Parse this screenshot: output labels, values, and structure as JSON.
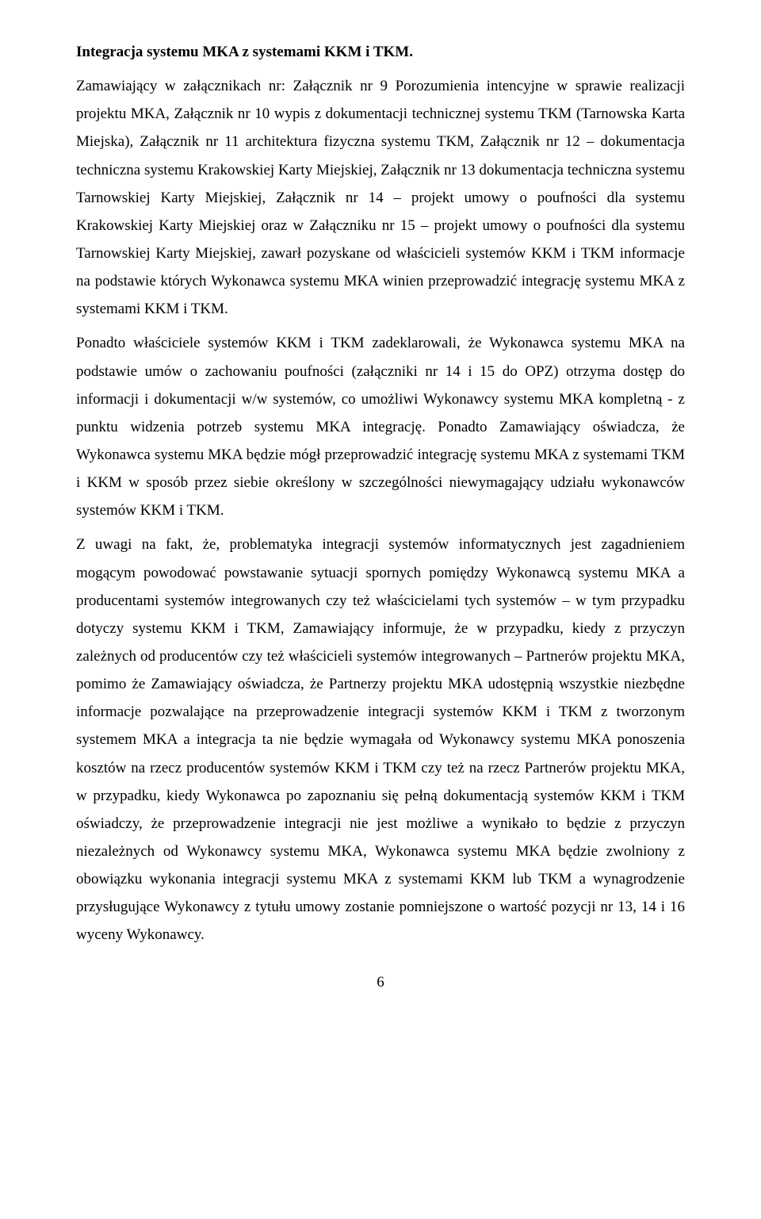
{
  "doc": {
    "heading": "Integracja systemu MKA z systemami KKM i TKM.",
    "p1": "Zamawiający w załącznikach nr: Załącznik nr 9 Porozumienia intencyjne w sprawie realizacji projektu MKA, Załącznik nr 10 wypis z dokumentacji technicznej systemu TKM (Tarnowska Karta Miejska), Załącznik nr 11 architektura fizyczna systemu TKM, Załącznik nr 12 – dokumentacja techniczna systemu Krakowskiej Karty Miejskiej, Załącznik nr 13 dokumentacja techniczna systemu Tarnowskiej Karty Miejskiej, Załącznik nr 14 – projekt umowy o poufności dla systemu Krakowskiej Karty Miejskiej oraz w  Załączniku nr 15 – projekt umowy o poufności dla systemu Tarnowskiej Karty Miejskiej, zawarł pozyskane od właścicieli systemów KKM i TKM informacje na podstawie których Wykonawca systemu MKA winien przeprowadzić integrację systemu MKA z systemami KKM i TKM.",
    "p2": "Ponadto właściciele systemów KKM i TKM zadeklarowali, że Wykonawca systemu MKA na podstawie umów o zachowaniu poufności (załączniki nr 14 i 15 do OPZ) otrzyma dostęp do informacji i dokumentacji w/w systemów, co umożliwi Wykonawcy systemu MKA kompletną - z punktu widzenia potrzeb systemu MKA integrację. Ponadto Zamawiający oświadcza, że Wykonawca systemu MKA będzie mógł przeprowadzić integrację systemu MKA z systemami TKM i KKM w sposób przez siebie określony w szczególności niewymagający udziału wykonawców systemów KKM i TKM.",
    "p3": "Z uwagi na fakt, że, problematyka integracji systemów informatycznych jest zagadnieniem mogącym powodować powstawanie sytuacji spornych pomiędzy Wykonawcą systemu MKA a producentami systemów integrowanych czy też właścicielami tych systemów – w tym przypadku dotyczy systemu KKM i TKM, Zamawiający informuje, że w przypadku, kiedy z przyczyn zależnych od producentów czy też właścicieli systemów integrowanych – Partnerów projektu MKA, pomimo że Zamawiający oświadcza, że Partnerzy projektu MKA udostępnią wszystkie niezbędne informacje pozwalające na przeprowadzenie integracji systemów KKM i TKM z tworzonym systemem MKA a integracja ta nie będzie wymagała od Wykonawcy systemu MKA ponoszenia kosztów na rzecz producentów systemów KKM i TKM czy też na rzecz Partnerów projektu MKA, w przypadku, kiedy Wykonawca po zapoznaniu się pełną dokumentacją systemów KKM i TKM oświadczy, że przeprowadzenie integracji nie jest możliwe a wynikało to będzie z przyczyn niezależnych od Wykonawcy systemu MKA, Wykonawca systemu MKA będzie zwolniony z obowiązku wykonania integracji systemu MKA z systemami KKM lub TKM a wynagrodzenie przysługujące Wykonawcy z tytułu umowy zostanie pomniejszone o wartość pozycji nr 13, 14 i 16 wyceny Wykonawcy.",
    "page_number": "6"
  }
}
